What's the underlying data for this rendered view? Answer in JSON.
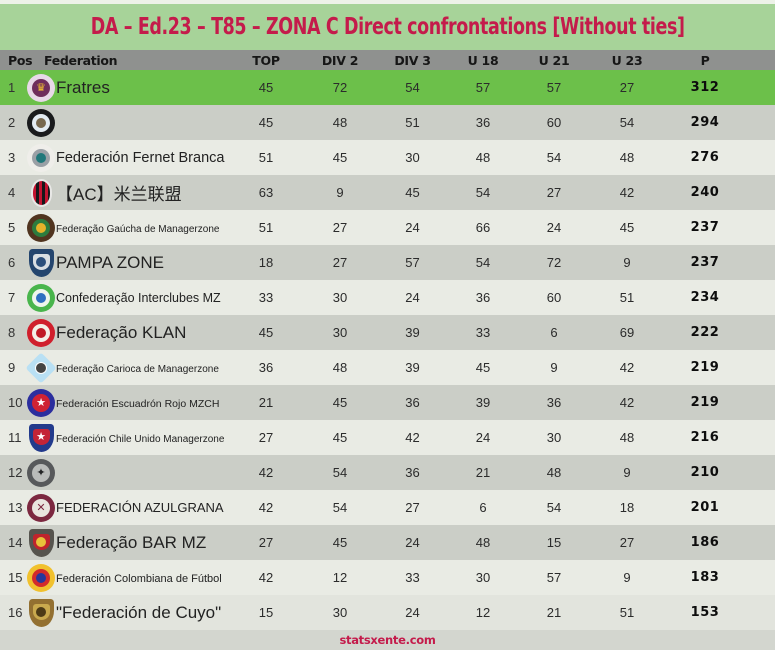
{
  "title": "DA – Ed.23 – T85 – ZONA C Direct confrontations [Without ties]",
  "footer": {
    "site": "statsxente.com"
  },
  "colors": {
    "page_bg": "#a7d399",
    "title_color": "#c41b4b",
    "header_bg": "#8f918f",
    "row_highlight_green": "#6cc04a",
    "row_dark_gray": "#cbcec7",
    "row_light_gray": "#e9ebe4",
    "footer_bg": "#d3d6cf"
  },
  "table": {
    "columns": [
      "Pos",
      "Federation",
      "TOP",
      "DIV 2",
      "DIV 3",
      "U 18",
      "U 21",
      "U 23",
      "P"
    ],
    "rows": [
      {
        "pos": "1",
        "name": "Fratres",
        "highlight": true,
        "values": [
          45,
          72,
          54,
          57,
          57,
          27
        ],
        "points": 312,
        "icon": {
          "name": "fratres-winged-crest-icon",
          "shape": "circle",
          "colors": [
            "#e8d9e8",
            "#6f2d5c",
            "#f2c230"
          ],
          "glyph": "♛"
        }
      },
      {
        "pos": "2",
        "name": "",
        "highlight": false,
        "values": [
          45,
          48,
          51,
          36,
          60,
          54
        ],
        "points": 294,
        "icon": {
          "name": "gladiator-helmet-badge-icon",
          "shape": "circle",
          "colors": [
            "#1a1b1d",
            "#e3ebf2",
            "#77684f"
          ]
        }
      },
      {
        "pos": "3",
        "name": "Federación Fernet Branca",
        "highlight": false,
        "values": [
          51,
          45,
          30,
          48,
          54,
          48
        ],
        "points": 276,
        "icon": {
          "name": "eagle-crest-icon",
          "shape": "circle",
          "colors": [
            "#efeeea",
            "#9aa0a6",
            "#20777a"
          ]
        }
      },
      {
        "pos": "4",
        "name": "【AC】米兰联盟",
        "highlight": false,
        "values": [
          63,
          9,
          45,
          54,
          27,
          42
        ],
        "points": 240,
        "icon": {
          "name": "milan-striped-oval-crest-icon",
          "shape": "stripes",
          "colors": [
            "#f4f4f2",
            "#c21330",
            "#17171a"
          ]
        }
      },
      {
        "pos": "5",
        "name": "Federação Gaúcha de Managerzone",
        "highlight": false,
        "values": [
          51,
          27,
          24,
          66,
          24,
          45
        ],
        "points": 237,
        "icon": {
          "name": "gaucha-round-crest-icon",
          "shape": "circle",
          "colors": [
            "#50341f",
            "#2c7c3e",
            "#e5b22a"
          ]
        }
      },
      {
        "pos": "6",
        "name": "PAMPA ZONE",
        "highlight": false,
        "values": [
          18,
          27,
          57,
          54,
          72,
          9
        ],
        "points": 237,
        "icon": {
          "name": "pampa-shield-icon",
          "shape": "shield",
          "colors": [
            "#24456e",
            "#d9dee3",
            "#2c4f7c"
          ]
        }
      },
      {
        "pos": "7",
        "name": "Confederação Interclubes MZ",
        "highlight": false,
        "values": [
          33,
          30,
          24,
          36,
          60,
          51
        ],
        "points": 234,
        "icon": {
          "name": "interclubes-globe-badge-icon",
          "shape": "circle",
          "colors": [
            "#49b54c",
            "#eef5ec",
            "#2f6fc0"
          ]
        }
      },
      {
        "pos": "8",
        "name": "Federação KLAN",
        "highlight": false,
        "values": [
          45,
          30,
          39,
          33,
          6,
          69
        ],
        "points": 222,
        "icon": {
          "name": "klan-red-lion-badge-icon",
          "shape": "circle",
          "colors": [
            "#d01f2c",
            "#f3efe7",
            "#c01a26"
          ]
        }
      },
      {
        "pos": "9",
        "name": "Federação Carioca de Managerzone",
        "highlight": false,
        "values": [
          36,
          48,
          39,
          45,
          9,
          42
        ],
        "points": 219,
        "icon": {
          "name": "carioca-soccerball-diamond-icon",
          "shape": "diamond",
          "colors": [
            "#b9e0f4",
            "#ffffff",
            "#444444"
          ]
        }
      },
      {
        "pos": "10",
        "name": "Federación Escuadrón Rojo MZCH",
        "highlight": false,
        "values": [
          21,
          45,
          36,
          39,
          36,
          42
        ],
        "points": 219,
        "icon": {
          "name": "escuadron-rojo-star-badge-icon",
          "shape": "circle",
          "colors": [
            "#2b2e9e",
            "#cf2233",
            "#ffffff"
          ],
          "glyph": "★"
        }
      },
      {
        "pos": "11",
        "name": "Federación Chile Unido Managerzone",
        "highlight": false,
        "values": [
          27,
          45,
          42,
          24,
          30,
          48
        ],
        "points": 216,
        "icon": {
          "name": "chile-unido-shield-icon",
          "shape": "shield",
          "colors": [
            "#223a8c",
            "#c42437",
            "#ffffff"
          ],
          "glyph": "★"
        }
      },
      {
        "pos": "12",
        "name": "",
        "highlight": false,
        "values": [
          42,
          54,
          36,
          21,
          48,
          9
        ],
        "points": 210,
        "icon": {
          "name": "dark-starburst-crest-icon",
          "shape": "circle",
          "colors": [
            "#57595b",
            "#babcba",
            "#232425"
          ],
          "glyph": "✦"
        }
      },
      {
        "pos": "13",
        "name": "FEDERACIÓN AZULGRANA",
        "highlight": false,
        "values": [
          42,
          54,
          27,
          6,
          54,
          18
        ],
        "points": 201,
        "icon": {
          "name": "azulgrana-ring-badge-icon",
          "shape": "circle",
          "colors": [
            "#7c2840",
            "#e9e5df",
            "#7c2840"
          ],
          "glyph": "✕"
        }
      },
      {
        "pos": "14",
        "name": "Federação BAR MZ",
        "highlight": false,
        "values": [
          27,
          45,
          24,
          48,
          15,
          27
        ],
        "points": 186,
        "icon": {
          "name": "bar-mz-shield-icon",
          "shape": "shield",
          "colors": [
            "#56544e",
            "#c0242c",
            "#e8c23a"
          ]
        }
      },
      {
        "pos": "15",
        "name": "Federación Colombiana de Fútbol",
        "highlight": false,
        "values": [
          42,
          12,
          33,
          30,
          57,
          9
        ],
        "points": 183,
        "icon": {
          "name": "colombiana-ball-badge-icon",
          "shape": "circle",
          "colors": [
            "#f1c12e",
            "#d32b2b",
            "#27379c"
          ]
        }
      },
      {
        "pos": "16",
        "name": "\"Federación de Cuyo\"",
        "highlight": false,
        "values": [
          15,
          30,
          24,
          12,
          21,
          51
        ],
        "points": 153,
        "icon": {
          "name": "cuyo-gold-lion-crest-icon",
          "shape": "shield",
          "colors": [
            "#937031",
            "#c9a94e",
            "#4c3a16"
          ]
        }
      }
    ]
  }
}
